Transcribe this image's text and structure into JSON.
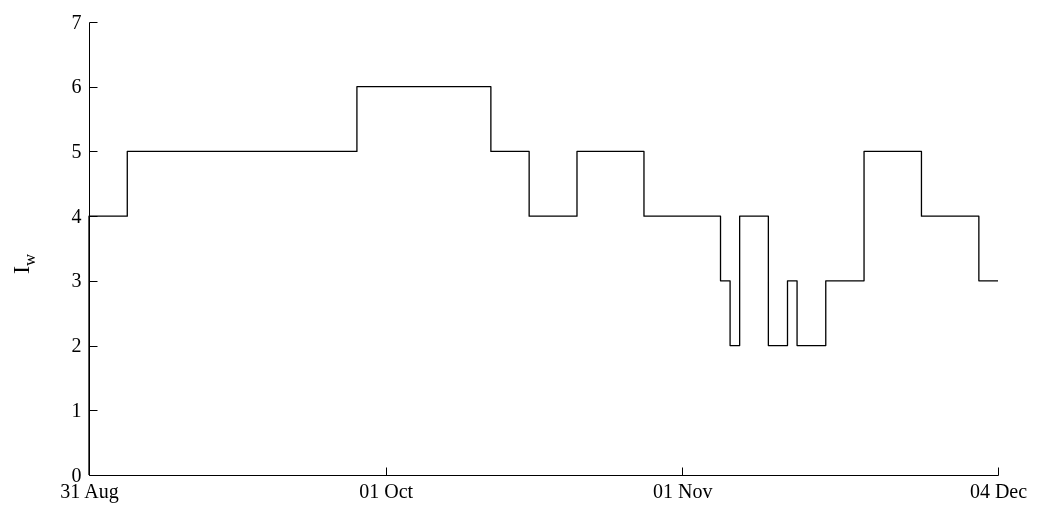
{
  "chart_data": {
    "type": "step",
    "ylabel": "I$_{w}$",
    "x": [
      "--08-31",
      "--08-31",
      "--09-04",
      "--09-28",
      "--10-12",
      "--10-16",
      "--10-21",
      "--10-28",
      "--11-05",
      "--11-06",
      "--11-07",
      "--11-10",
      "--11-12",
      "--11-13",
      "--11-16",
      "--11-20",
      "--11-26",
      "--12-02",
      "--12-04"
    ],
    "series": [
      {
        "color": "#000000",
        "values": [
          0,
          4,
          5,
          6,
          5,
          4,
          5,
          4,
          3,
          2,
          4,
          2,
          3,
          2,
          3,
          5,
          4,
          3,
          3
        ]
      }
    ],
    "xlim": [
      "--08-31",
      "--12-04"
    ],
    "xticks": [
      {
        "value": "--08-31",
        "label": "31 Aug"
      },
      {
        "value": "--10-01",
        "label": "01 Oct"
      },
      {
        "value": "--11-01",
        "label": "01 Nov"
      },
      {
        "value": "--12-04",
        "label": "04 Dec"
      }
    ],
    "ylim": [
      0,
      7
    ],
    "yticks": [
      0,
      1,
      2,
      3,
      4,
      5,
      6,
      7
    ],
    "grid": false,
    "line_style": "solid",
    "marker": "none"
  }
}
